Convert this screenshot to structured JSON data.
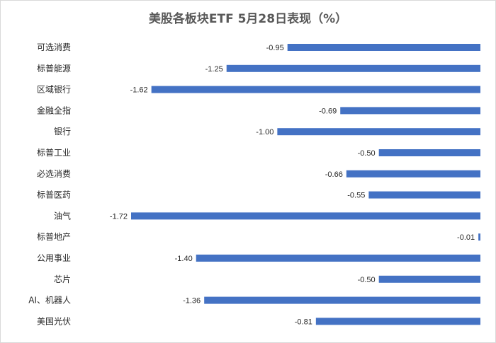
{
  "chart_data": {
    "type": "bar",
    "orientation": "horizontal",
    "title": "美股各板块ETF  5月28日表现（%）",
    "categories": [
      "可选消费",
      "标普能源",
      "区域银行",
      "金融全指",
      "银行",
      "标普工业",
      "必选消费",
      "标普医药",
      "油气",
      "标普地产",
      "公用事业",
      "芯片",
      "AI、机器人",
      "美国光伏"
    ],
    "values": [
      -0.95,
      -1.25,
      -1.62,
      -0.69,
      -1.0,
      -0.5,
      -0.66,
      -0.55,
      -1.72,
      -0.01,
      -1.4,
      -0.5,
      -1.36,
      -0.81
    ],
    "labels": [
      "-0.95",
      "-1.25",
      "-1.62",
      "-0.69",
      "-1.00",
      "-0.50",
      "-0.66",
      "-0.55",
      "-1.72",
      "-0.01",
      "-1.40",
      "-0.50",
      "-1.36",
      "-0.81"
    ],
    "xlim": [
      -1.72,
      0
    ],
    "bar_color": "#4472c4",
    "grid": false,
    "legend": "none"
  }
}
